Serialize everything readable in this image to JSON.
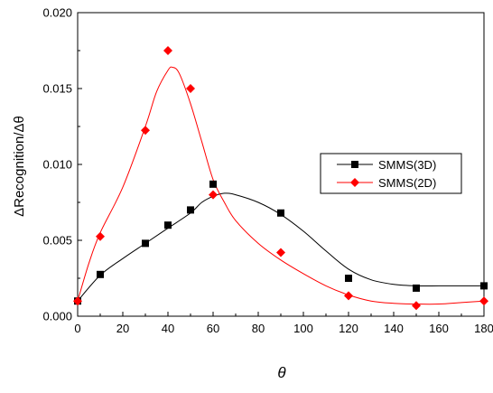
{
  "chart_data": {
    "type": "scatter",
    "xlabel": "θ",
    "ylabel": "ΔRecognition/Δθ",
    "xlim": [
      0,
      180
    ],
    "ylim": [
      0,
      0.02
    ],
    "xticks": [
      "0",
      "20",
      "40",
      "60",
      "80",
      "100",
      "120",
      "140",
      "160",
      "180"
    ],
    "yticks": [
      "0.000",
      "0.005",
      "0.010",
      "0.015",
      "0.020"
    ],
    "grid": false,
    "legend_position": "right",
    "series": [
      {
        "name": "SMMS(3D)",
        "color": "#000000",
        "marker": "square",
        "x": [
          0,
          10,
          30,
          40,
          50,
          60,
          90,
          120,
          150,
          180
        ],
        "values": [
          0.001,
          0.00275,
          0.0048,
          0.006,
          0.007,
          0.0087,
          0.0068,
          0.0025,
          0.00185,
          0.002
        ],
        "fit_curve": [
          [
            0,
            0.001
          ],
          [
            10,
            0.0027
          ],
          [
            20,
            0.0038
          ],
          [
            30,
            0.0048
          ],
          [
            40,
            0.0058
          ],
          [
            50,
            0.0068
          ],
          [
            55,
            0.0075
          ],
          [
            60,
            0.0079
          ],
          [
            65,
            0.0081
          ],
          [
            70,
            0.008
          ],
          [
            80,
            0.0075
          ],
          [
            90,
            0.0067
          ],
          [
            100,
            0.0056
          ],
          [
            110,
            0.0043
          ],
          [
            120,
            0.0031
          ],
          [
            130,
            0.0024
          ],
          [
            140,
            0.0021
          ],
          [
            150,
            0.002
          ],
          [
            160,
            0.002
          ],
          [
            170,
            0.002
          ],
          [
            180,
            0.002
          ]
        ]
      },
      {
        "name": "SMMS(2D)",
        "color": "#ff0000",
        "marker": "diamond",
        "x": [
          0,
          10,
          30,
          40,
          50,
          60,
          90,
          120,
          150,
          180
        ],
        "values": [
          0.001,
          0.00525,
          0.01225,
          0.0175,
          0.015,
          0.008,
          0.0042,
          0.00135,
          0.0007,
          0.001
        ],
        "fit_curve": [
          [
            0,
            0.001
          ],
          [
            5,
            0.0035
          ],
          [
            10,
            0.0055
          ],
          [
            20,
            0.0085
          ],
          [
            30,
            0.0125
          ],
          [
            35,
            0.0148
          ],
          [
            40,
            0.0162
          ],
          [
            42,
            0.0164
          ],
          [
            45,
            0.016
          ],
          [
            50,
            0.014
          ],
          [
            55,
            0.0115
          ],
          [
            60,
            0.009
          ],
          [
            65,
            0.0075
          ],
          [
            70,
            0.0063
          ],
          [
            80,
            0.0048
          ],
          [
            90,
            0.0037
          ],
          [
            100,
            0.0028
          ],
          [
            110,
            0.002
          ],
          [
            120,
            0.0014
          ],
          [
            130,
            0.001
          ],
          [
            140,
            0.00085
          ],
          [
            150,
            0.0008
          ],
          [
            160,
            0.0008
          ],
          [
            170,
            0.0009
          ],
          [
            180,
            0.001
          ]
        ]
      }
    ]
  }
}
